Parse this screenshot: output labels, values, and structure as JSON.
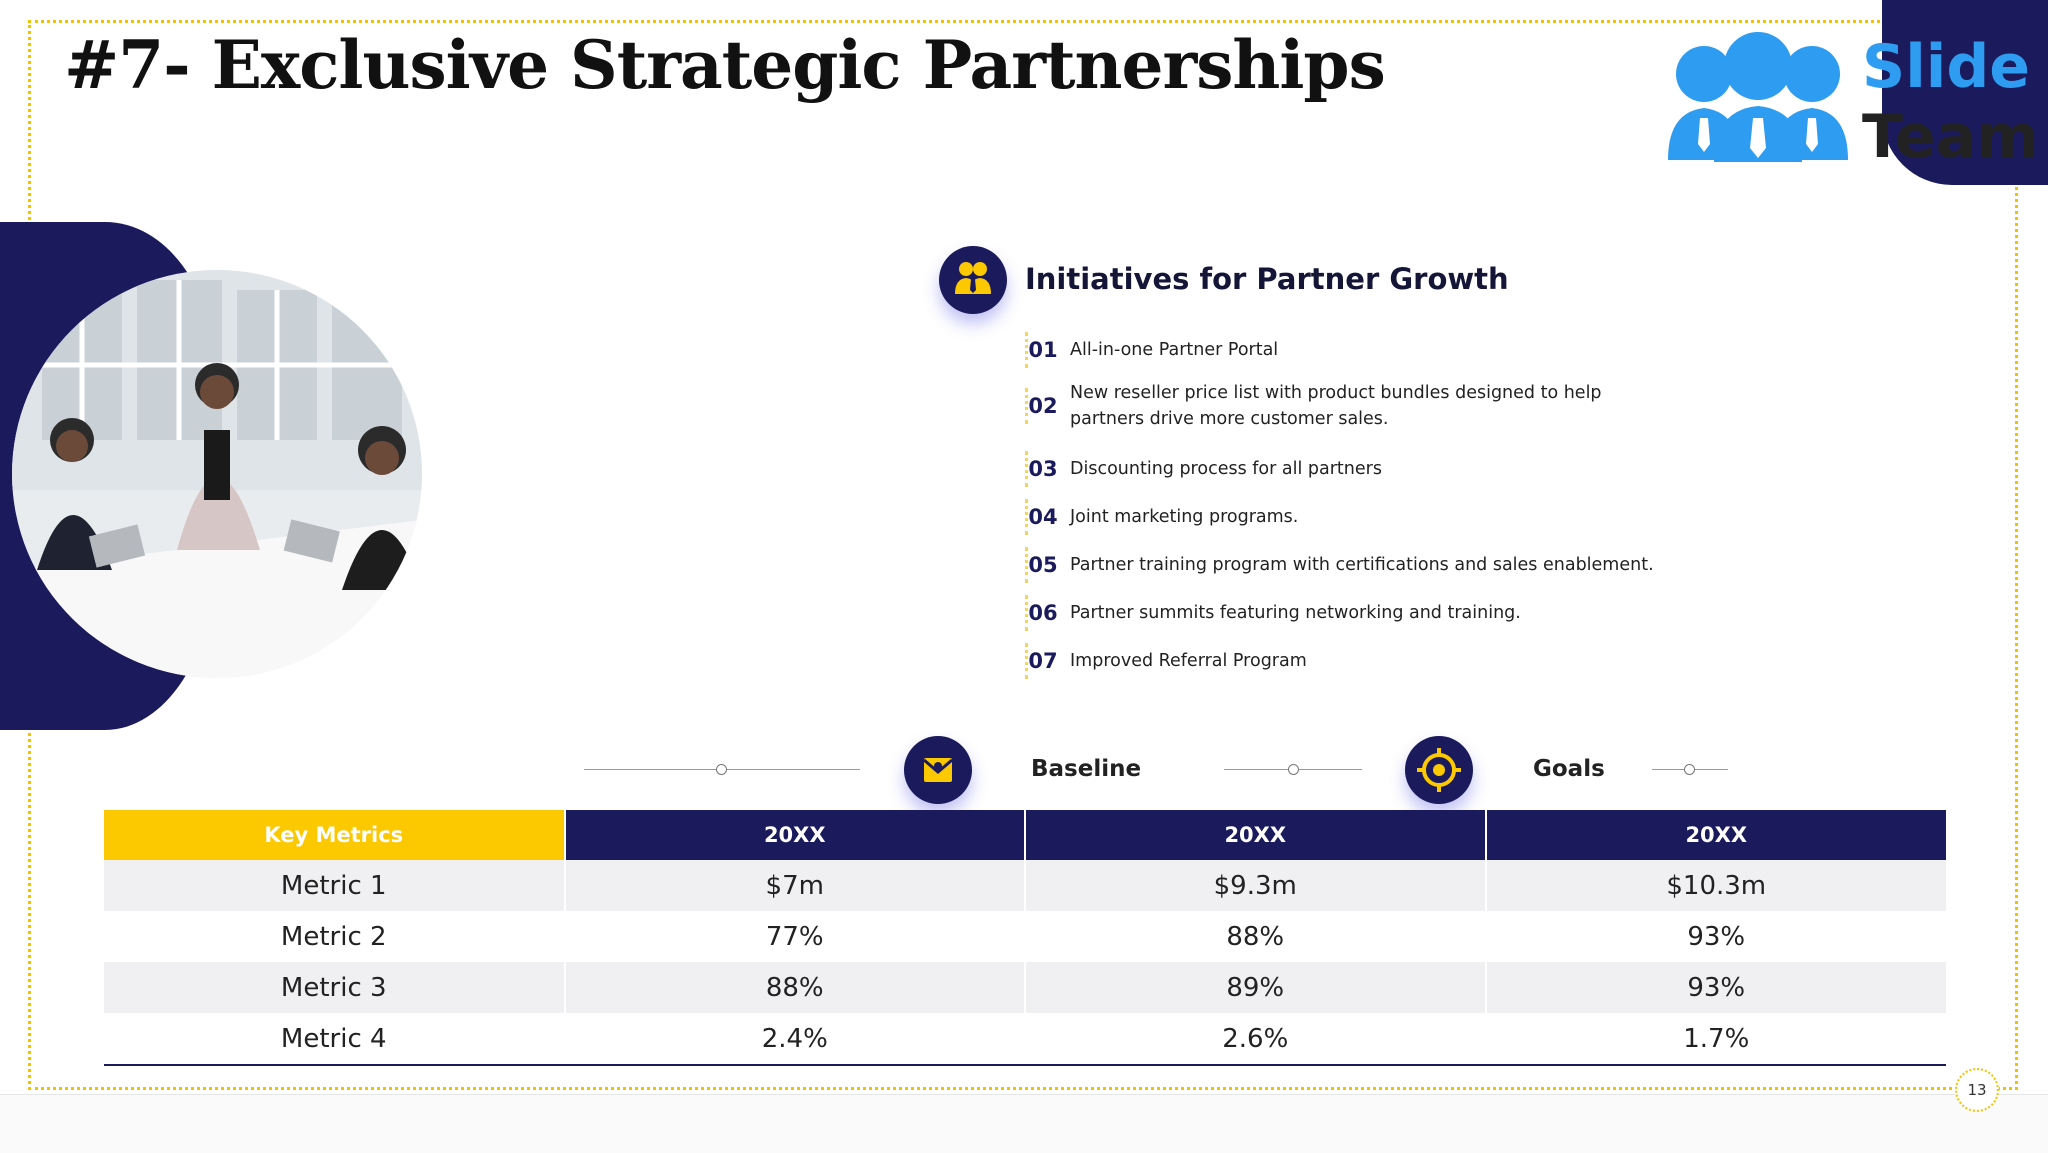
{
  "slide": {
    "title": "#7- Exclusive Strategic Partnerships",
    "page_number": "13"
  },
  "logo": {
    "word1": "Slide",
    "word2": "Team",
    "brand_color": "#2e9cf0"
  },
  "colors": {
    "navy": "#1b1a5c",
    "yellow": "#fcc800",
    "row_alt": "#f0f0f3"
  },
  "initiatives": {
    "heading": "Initiatives for Partner Growth",
    "icon": "partners-group-icon",
    "items": [
      {
        "num": "01",
        "text": "All-in-one Partner Portal"
      },
      {
        "num": "02",
        "text": "New reseller price list with product bundles designed to help partners drive more customer sales."
      },
      {
        "num": "03",
        "text": "Discounting process for all partners"
      },
      {
        "num": "04",
        "text": "Joint marketing programs."
      },
      {
        "num": "05",
        "text": "Partner training program with certifications and sales enablement."
      },
      {
        "num": "06",
        "text": "Partner summits featuring networking and training."
      },
      {
        "num": "07",
        "text": "Improved Referral Program"
      }
    ]
  },
  "milestones": {
    "baseline_label": "Baseline",
    "baseline_icon": "envelope-icon",
    "goals_label": "Goals",
    "goals_icon": "target-icon"
  },
  "table": {
    "headers": [
      "Key Metrics",
      "20XX",
      "20XX",
      "20XX"
    ],
    "rows": [
      [
        "Metric 1",
        "$7m",
        "$9.3m",
        "$10.3m"
      ],
      [
        "Metric 2",
        "77%",
        "88%",
        "93%"
      ],
      [
        "Metric 3",
        "88%",
        "89%",
        "93%"
      ],
      [
        "Metric 4",
        "2.4%",
        "2.6%",
        "1.7%"
      ]
    ]
  }
}
